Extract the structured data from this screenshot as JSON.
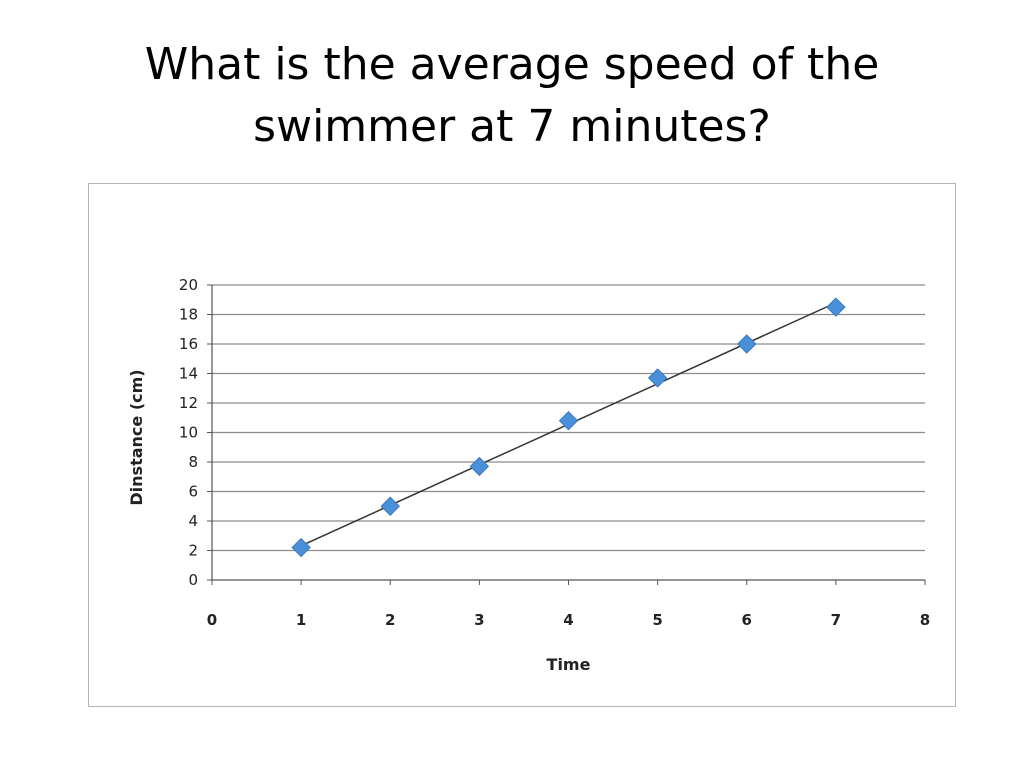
{
  "slide": {
    "title_line1": "What is the average speed of the",
    "title_line2": "swimmer at 7 minutes?"
  },
  "chart_data": {
    "type": "scatter",
    "title": "",
    "xlabel": "Time",
    "ylabel": "Dinstance (cm)",
    "xlim": [
      0,
      8
    ],
    "ylim": [
      0,
      20
    ],
    "x_ticks": [
      0,
      1,
      2,
      3,
      4,
      5,
      6,
      7,
      8
    ],
    "y_ticks": [
      0,
      2,
      4,
      6,
      8,
      10,
      12,
      14,
      16,
      18,
      20
    ],
    "grid": true,
    "legend": "none",
    "trendline": "linear",
    "marker": "diamond",
    "marker_color": "#4a90d9",
    "trendline_color": "#333333",
    "series": [
      {
        "x": [
          1,
          2,
          3,
          4,
          5,
          6,
          7
        ],
        "y": [
          2.2,
          5.0,
          7.7,
          10.8,
          13.7,
          16.0,
          18.5
        ]
      }
    ]
  }
}
